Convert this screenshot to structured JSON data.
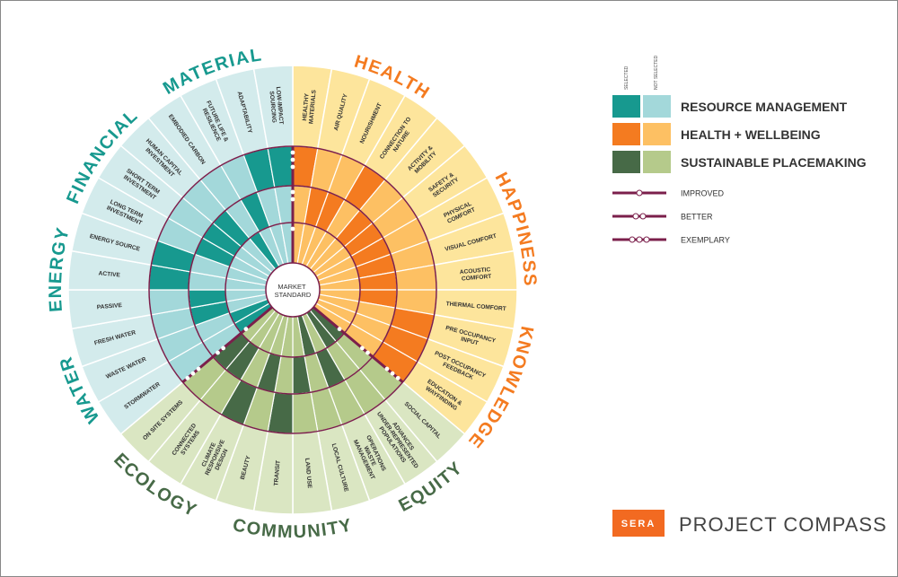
{
  "center_label": "MARKET STANDARD",
  "legend": {
    "selected_header": "SELECTED",
    "not_selected_header": "NOT SELECTED",
    "groups": [
      {
        "name": "RESOURCE MANAGEMENT",
        "selected_color": "#17998f",
        "not_selected_color": "#a3d8da",
        "band_color": "#d3ebec"
      },
      {
        "name": "HEALTH + WELLBEING",
        "selected_color": "#f47b20",
        "not_selected_color": "#fdc063",
        "band_color": "#fde59c"
      },
      {
        "name": "SUSTAINABLE PLACEMAKING",
        "selected_color": "#476a47",
        "not_selected_color": "#b5ca8b",
        "band_color": "#dae6c2"
      }
    ],
    "levels": [
      "IMPROVED",
      "BETTER",
      "EXEMPLARY"
    ]
  },
  "sections": [
    {
      "name": "HEALTH",
      "group": 1,
      "items": [
        {
          "label": "HEALTHY MATERIALS",
          "level": 3
        },
        {
          "label": "AIR QUALITY",
          "level": 2
        },
        {
          "label": "NOURISHMENT",
          "level": 2
        },
        {
          "label": "CONNECTION TO NATURE",
          "level": 3
        },
        {
          "label": "ACTIVITY & MOBILITY",
          "level": 2
        }
      ]
    },
    {
      "name": "HAPPINESS",
      "group": 1,
      "items": [
        {
          "label": "SAFETY & SECURITY",
          "level": 2
        },
        {
          "label": "PHYSICAL COMFORT",
          "level": 2
        },
        {
          "label": "VISUAL COMFORT",
          "level": 2
        },
        {
          "label": "ACOUSTIC COMFORT",
          "level": 2
        },
        {
          "label": "THERMAL COMFORT",
          "level": 2
        }
      ]
    },
    {
      "name": "KNOWLEDGE",
      "group": 1,
      "items": [
        {
          "label": "PRE OCCUPANCY INPUT",
          "level": 3
        },
        {
          "label": "POST OCCUPANCY FEEDBACK",
          "level": 3
        },
        {
          "label": "EDUCATION & WAYFINDING",
          "level": 3
        }
      ]
    },
    {
      "name": "EQUITY",
      "group": 2,
      "items": [
        {
          "label": "SOCIAL CAPITAL",
          "level": 1
        },
        {
          "label": "ADVANCES UNDER-REPRESENTED POPULATIONS",
          "level": 1
        },
        {
          "label": "OPERATIONS WASTE MANAGEMENT",
          "level": 2
        }
      ]
    },
    {
      "name": "COMMUNITY",
      "group": 2,
      "items": [
        {
          "label": "LOCAL CULTURE",
          "level": 1
        },
        {
          "label": "LAND USE",
          "level": 2
        },
        {
          "label": "TRANSIT",
          "level": 3
        },
        {
          "label": "BEAUTY",
          "level": 2
        }
      ]
    },
    {
      "name": "ECOLOGY",
      "group": 2,
      "items": [
        {
          "label": "CLIMATE RESPONSIVE DESIGN",
          "level": 3
        },
        {
          "label": "CONNECTED SYSTEMS",
          "level": 2
        },
        {
          "label": "ON SITE SYSTEMS",
          "level": 2
        }
      ]
    },
    {
      "name": "WATER",
      "group": 0,
      "items": [
        {
          "label": "STORMWATER",
          "level": 1
        },
        {
          "label": "WASTE WATER",
          "level": 1
        },
        {
          "label": "FRESH WATER",
          "level": 2
        }
      ]
    },
    {
      "name": "ENERGY",
      "group": 0,
      "items": [
        {
          "label": "PASSIVE",
          "level": 2
        },
        {
          "label": "ACTIVE",
          "level": 3
        },
        {
          "label": "ENERGY SOURCE",
          "level": 3
        }
      ]
    },
    {
      "name": "FINANCIAL",
      "group": 0,
      "items": [
        {
          "label": "LONG TERM INVESTMENT",
          "level": 2
        },
        {
          "label": "SHORT TERM INVESTMENT",
          "level": 2
        },
        {
          "label": "HUMAN CAPITAL INVESTMENT",
          "level": 2
        }
      ]
    },
    {
      "name": "MATERIAL",
      "group": 0,
      "items": [
        {
          "label": "EMBODIED CARBON",
          "level": 1
        },
        {
          "label": "FUTURE LIFE & RESILIENCE",
          "level": 2
        },
        {
          "label": "ADAPTABILITY",
          "level": 3
        },
        {
          "label": "LOW-IMPACT SOURCING",
          "level": 3
        }
      ]
    }
  ],
  "brand": {
    "logo": "SERA",
    "title": "PROJECT COMPASS"
  }
}
